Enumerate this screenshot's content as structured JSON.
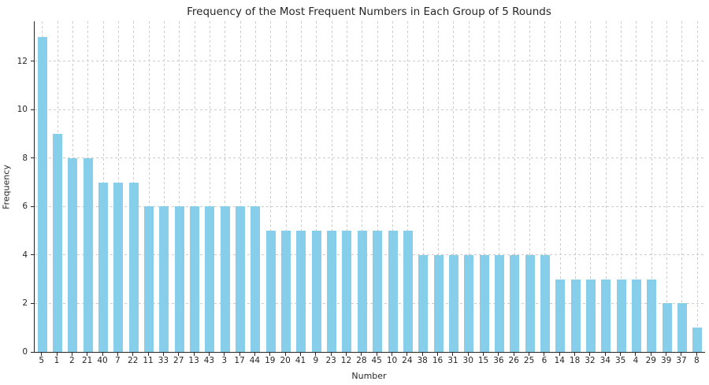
{
  "chart_data": {
    "type": "bar",
    "title": "Frequency of the Most Frequent Numbers in Each Group of 5 Rounds",
    "xlabel": "Number",
    "ylabel": "Frequency",
    "categories": [
      "5",
      "1",
      "2",
      "21",
      "40",
      "7",
      "22",
      "11",
      "33",
      "27",
      "13",
      "43",
      "3",
      "17",
      "44",
      "19",
      "20",
      "41",
      "9",
      "23",
      "12",
      "28",
      "45",
      "10",
      "24",
      "38",
      "16",
      "31",
      "30",
      "15",
      "36",
      "26",
      "25",
      "6",
      "14",
      "18",
      "32",
      "34",
      "35",
      "4",
      "29",
      "39",
      "37",
      "8"
    ],
    "values": [
      13,
      9,
      8,
      8,
      7,
      7,
      7,
      6,
      6,
      6,
      6,
      6,
      6,
      6,
      6,
      5,
      5,
      5,
      5,
      5,
      5,
      5,
      5,
      5,
      5,
      4,
      4,
      4,
      4,
      4,
      4,
      4,
      4,
      4,
      3,
      3,
      3,
      3,
      3,
      3,
      3,
      2,
      2,
      1
    ],
    "yticks": [
      0,
      2,
      4,
      6,
      8,
      10,
      12
    ],
    "ylim": [
      0,
      13.65
    ],
    "bar_color": "#87CEEB",
    "grid_color": "#cccccc",
    "axis_color": "#262626",
    "grid": "both-dashed",
    "legend": "none",
    "background": "#ffffff"
  }
}
